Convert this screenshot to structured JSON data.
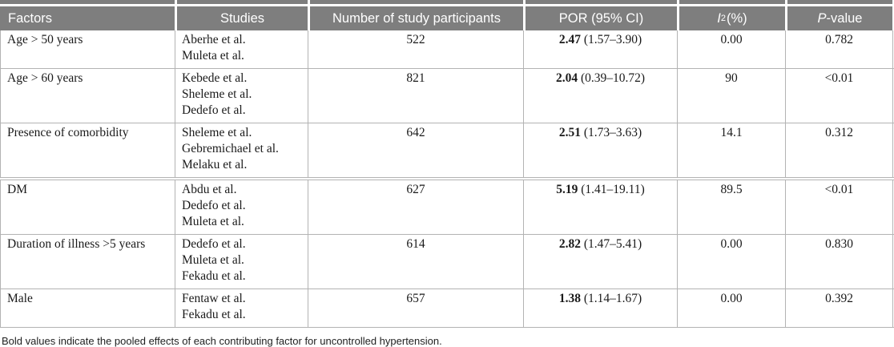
{
  "table": {
    "header": {
      "factors": "Factors",
      "studies": "Studies",
      "participants": "Number of study participants",
      "por": "POR (95% CI)",
      "i2_italic": "I",
      "i2_sup": "2",
      "i2_rest": " (%)",
      "p_italic": "P",
      "p_rest": "-value"
    },
    "rows": [
      {
        "factor": "Age > 50 years",
        "studies": [
          "Aberhe et al.",
          "Muleta et al."
        ],
        "participants": "522",
        "por_bold": "2.47",
        "por_ci": "(1.57–3.90)",
        "i2": "0.00",
        "p": "0.782",
        "group_start": false
      },
      {
        "factor": "Age > 60 years",
        "studies": [
          "Kebede et al.",
          "Sheleme et al.",
          "Dedefo et al."
        ],
        "participants": "821",
        "por_bold": "2.04",
        "por_ci": "(0.39–10.72)",
        "i2": "90",
        "p": "<0.01",
        "group_start": false
      },
      {
        "factor": "Presence of comorbidity",
        "studies": [
          "Sheleme et al.",
          "Gebremichael et al.",
          "Melaku et al."
        ],
        "participants": "642",
        "por_bold": "2.51",
        "por_ci": "(1.73–3.63)",
        "i2": "14.1",
        "p": "0.312",
        "group_start": false
      },
      {
        "factor": "DM",
        "studies": [
          "Abdu et al.",
          "Dedefo et al.",
          "Muleta et al."
        ],
        "participants": "627",
        "por_bold": "5.19",
        "por_ci": "(1.41–19.11)",
        "i2": "89.5",
        "p": "<0.01",
        "group_start": true
      },
      {
        "factor": "Duration of illness >5 years",
        "studies": [
          "Dedefo et al.",
          "Muleta et al.",
          "Fekadu et al."
        ],
        "participants": "614",
        "por_bold": "2.82",
        "por_ci": "(1.47–5.41)",
        "i2": "0.00",
        "p": "0.830",
        "group_start": false
      },
      {
        "factor": "Male",
        "studies": [
          "Fentaw et al.",
          "Fekadu et al."
        ],
        "participants": "657",
        "por_bold": "1.38",
        "por_ci": "(1.14–1.67)",
        "i2": "0.00",
        "p": "0.392",
        "group_start": false
      }
    ],
    "footnote": "Bold values indicate the pooled effects of each contributing factor for uncontrolled hypertension."
  }
}
